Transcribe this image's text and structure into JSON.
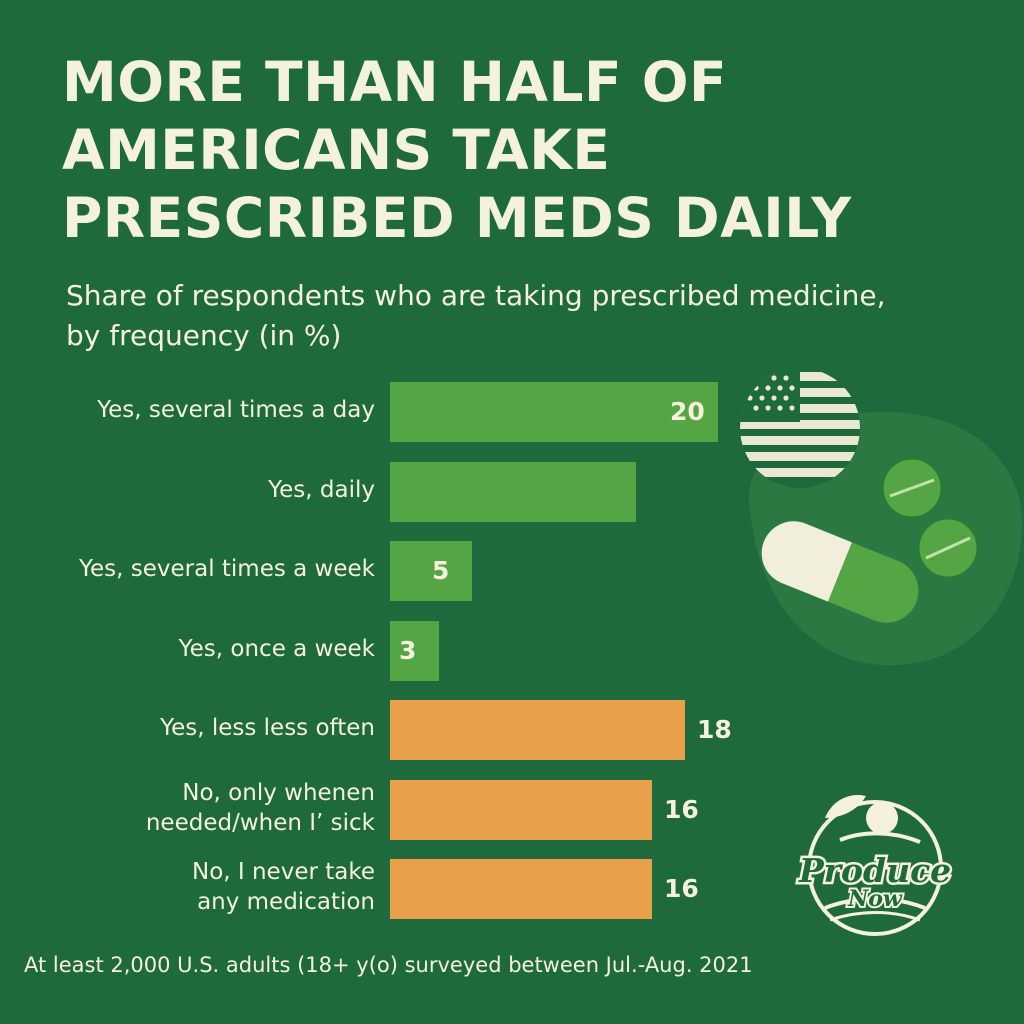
{
  "header": {
    "title_lines": [
      "MORE THAN HALF OF",
      "AMERICANS TAKE",
      "PRESCRIBED MEDS DAILY"
    ],
    "subtitle_lines": [
      "Share of respondents who are taking prescribed medicine,",
      "by frequency (in %)"
    ]
  },
  "footnote": "At least 2,000 U.S. adults (18+ y(o) surveyed between Jul.-Aug. 2021",
  "logo": {
    "text": "Produce Now"
  },
  "icons": [
    "us-flag-icon",
    "pill-capsule-icon",
    "tablet-icon"
  ],
  "colors": {
    "background": "#1e6a3c",
    "bar_green": "#56a544",
    "bar_orange": "#e8a04a",
    "text": "#f4f1dc"
  },
  "chart_data": {
    "type": "bar",
    "orientation": "horizontal",
    "categories": [
      [
        "Yes, several times a day"
      ],
      [
        "Yes, daily"
      ],
      [
        "Yes, several times a week"
      ],
      [
        "Yes, once a week"
      ],
      [
        "Yes, less less often"
      ],
      [
        "No, only whenen",
        "needed/when I’ sick"
      ],
      [
        "No, I never take",
        "any medication"
      ]
    ],
    "values": [
      20,
      15,
      5,
      3,
      18,
      16,
      16
    ],
    "value_labels": [
      "20",
      "",
      "5",
      "3",
      "18",
      "16",
      "16"
    ],
    "bar_colors": [
      "#56a544",
      "#56a544",
      "#56a544",
      "#56a544",
      "#e8a04a",
      "#e8a04a",
      "#e8a04a"
    ],
    "xlim": [
      0,
      20
    ],
    "title": "MORE THAN HALF OF AMERICANS TAKE PRESCRIBED MEDS DAILY",
    "subtitle": "Share of respondents who are taking prescribed medicine, by frequency (in %)",
    "xlabel": "",
    "ylabel": "",
    "grid": false,
    "legend": "none"
  }
}
